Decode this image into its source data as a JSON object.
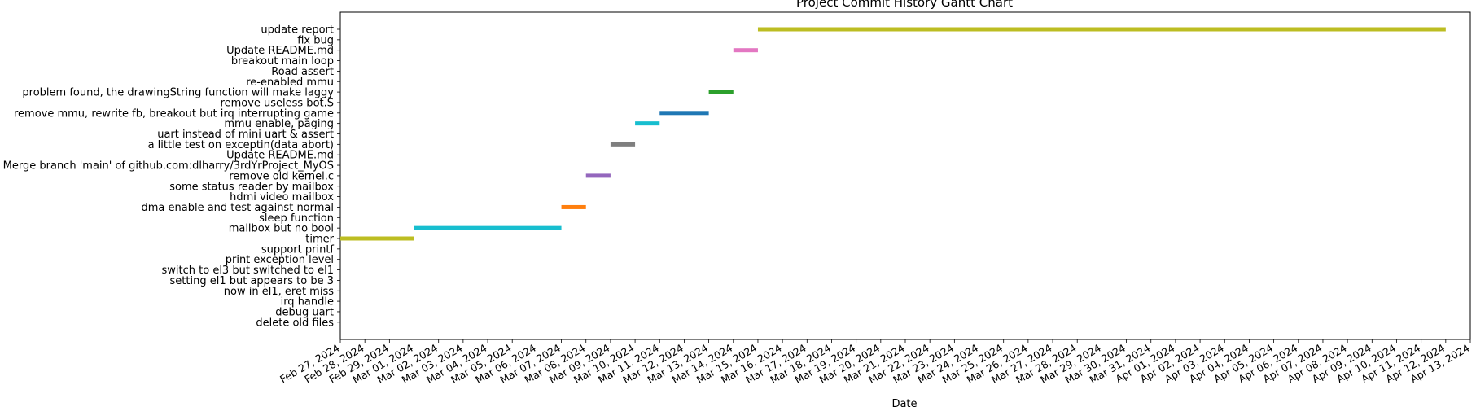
{
  "chart_data": {
    "type": "gantt",
    "title": "Project Commit History Gantt Chart",
    "xlabel": "Date",
    "ylabel": "",
    "grid": false,
    "xlim": [
      "2024-02-27",
      "2024-04-13"
    ],
    "x_ticks": [
      "Feb 27, 2024",
      "Feb 28, 2024",
      "Feb 29, 2024",
      "Mar 01, 2024",
      "Mar 02, 2024",
      "Mar 03, 2024",
      "Mar 04, 2024",
      "Mar 05, 2024",
      "Mar 06, 2024",
      "Mar 07, 2024",
      "Mar 08, 2024",
      "Mar 09, 2024",
      "Mar 10, 2024",
      "Mar 11, 2024",
      "Mar 12, 2024",
      "Mar 13, 2024",
      "Mar 14, 2024",
      "Mar 15, 2024",
      "Mar 16, 2024",
      "Mar 17, 2024",
      "Mar 18, 2024",
      "Mar 19, 2024",
      "Mar 20, 2024",
      "Mar 21, 2024",
      "Mar 22, 2024",
      "Mar 23, 2024",
      "Mar 24, 2024",
      "Mar 25, 2024",
      "Mar 26, 2024",
      "Mar 27, 2024",
      "Mar 28, 2024",
      "Mar 29, 2024",
      "Mar 30, 2024",
      "Mar 31, 2024",
      "Apr 01, 2024",
      "Apr 02, 2024",
      "Apr 03, 2024",
      "Apr 04, 2024",
      "Apr 05, 2024",
      "Apr 06, 2024",
      "Apr 07, 2024",
      "Apr 08, 2024",
      "Apr 09, 2024",
      "Apr 10, 2024",
      "Apr 11, 2024",
      "Apr 12, 2024",
      "Apr 13, 2024"
    ],
    "tasks": [
      {
        "label": "update report",
        "start": "2024-03-15",
        "end": "2024-04-12",
        "color": "#bcbd22"
      },
      {
        "label": "fix bug",
        "start": null,
        "end": null,
        "color": null
      },
      {
        "label": "Update README.md",
        "start": "2024-03-14",
        "end": "2024-03-15",
        "color": "#e377c2"
      },
      {
        "label": "breakout main loop",
        "start": null,
        "end": null,
        "color": null
      },
      {
        "label": "Road assert",
        "start": null,
        "end": null,
        "color": null
      },
      {
        "label": "re-enabled mmu",
        "start": null,
        "end": null,
        "color": null
      },
      {
        "label": "problem found, the drawingString function will make laggy",
        "start": "2024-03-13",
        "end": "2024-03-14",
        "color": "#2ca02c"
      },
      {
        "label": "remove useless bot.S",
        "start": null,
        "end": null,
        "color": null
      },
      {
        "label": "remove mmu, rewrite fb, breakout but irq interrupting game",
        "start": "2024-03-11",
        "end": "2024-03-13",
        "color": "#1f77b4"
      },
      {
        "label": "mmu enable, paging",
        "start": "2024-03-10",
        "end": "2024-03-11",
        "color": "#17becf"
      },
      {
        "label": "uart instead of mini uart & assert",
        "start": null,
        "end": null,
        "color": null
      },
      {
        "label": "a little test on exceptin(data abort)",
        "start": "2024-03-09",
        "end": "2024-03-10",
        "color": "#7f7f7f"
      },
      {
        "label": "Update README.md",
        "start": null,
        "end": null,
        "color": null
      },
      {
        "label": "Merge branch 'main' of github.com:dlharry/3rdYrProject_MyOS",
        "start": null,
        "end": null,
        "color": null
      },
      {
        "label": "remove old kernel.c",
        "start": "2024-03-08",
        "end": "2024-03-09",
        "color": "#9467bd"
      },
      {
        "label": "some status reader by mailbox",
        "start": null,
        "end": null,
        "color": null
      },
      {
        "label": "hdmi video mailbox",
        "start": null,
        "end": null,
        "color": null
      },
      {
        "label": "dma enable and test against normal",
        "start": "2024-03-07",
        "end": "2024-03-08",
        "color": "#ff7f0e"
      },
      {
        "label": "sleep function",
        "start": null,
        "end": null,
        "color": null
      },
      {
        "label": "mailbox but no bool",
        "start": "2024-03-01",
        "end": "2024-03-07",
        "color": "#17becf"
      },
      {
        "label": "timer",
        "start": "2024-02-27",
        "end": "2024-03-01",
        "color": "#bcbd22"
      },
      {
        "label": "support printf",
        "start": null,
        "end": null,
        "color": null
      },
      {
        "label": "print exception level",
        "start": null,
        "end": null,
        "color": null
      },
      {
        "label": "switch to el3 but switched to el1",
        "start": null,
        "end": null,
        "color": null
      },
      {
        "label": "setting el1 but appears to be 3",
        "start": null,
        "end": null,
        "color": null
      },
      {
        "label": "now in el1, eret miss",
        "start": null,
        "end": null,
        "color": null
      },
      {
        "label": "irq handle",
        "start": null,
        "end": null,
        "color": null
      },
      {
        "label": "debug uart",
        "start": null,
        "end": null,
        "color": null
      },
      {
        "label": "delete old files",
        "start": null,
        "end": null,
        "color": null
      }
    ]
  }
}
